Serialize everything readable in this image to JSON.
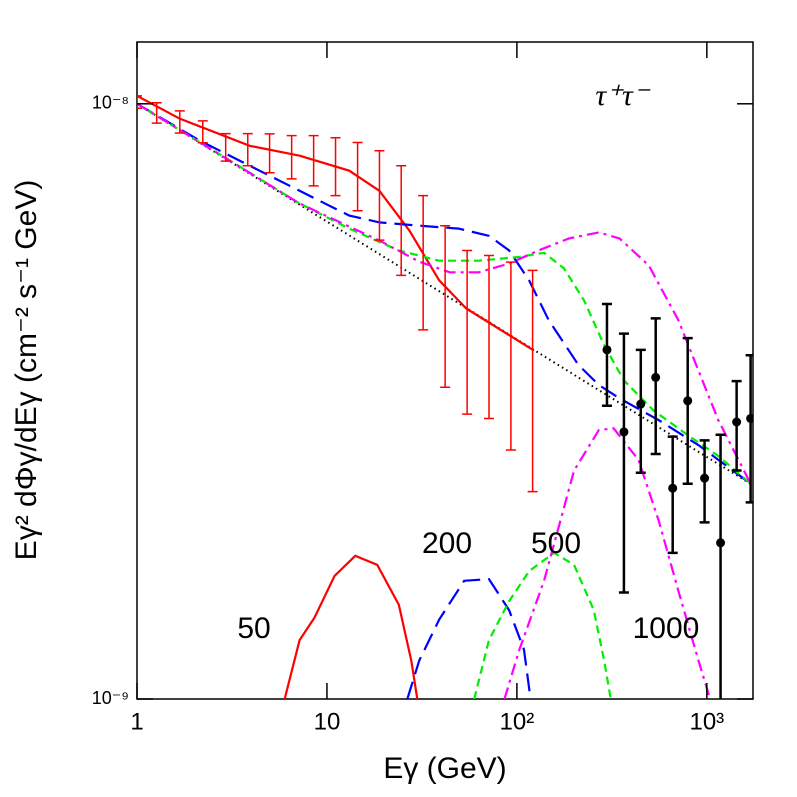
{
  "chart_data": {
    "type": "line",
    "x_label": "Eγ (GeV)",
    "y_label": "Eγ² dΦγ/dEγ (cm⁻² s⁻¹ GeV)",
    "log_x": true,
    "log_y": true,
    "xlim": [
      1,
      1750
    ],
    "ylim": [
      1e-09,
      1.27e-08
    ],
    "xticks": [
      1,
      10,
      {
        "value": 100,
        "label": "10²"
      },
      {
        "value": 1000,
        "label": "10³"
      }
    ],
    "yticks": [
      {
        "value": 1e-09,
        "label": "10⁻⁹"
      },
      {
        "value": 1e-08,
        "label": "10⁻⁸"
      }
    ],
    "annotations": [
      "τ⁺τ⁻",
      "50",
      "200",
      "500",
      "1000"
    ],
    "series": [
      {
        "style": "dotted",
        "color": "#000000",
        "x": [
          1,
          10,
          100,
          1000,
          1700
        ],
        "values": [
          1e-08,
          6.34e-09,
          4.02e-09,
          2.55e-09,
          2.3e-09
        ]
      },
      {
        "style": "solid",
        "color": "#ff0000",
        "x": [
          1,
          1.68,
          3.92,
          7.18,
          13.1,
          18.9,
          27.2,
          39,
          54.1,
          123
        ],
        "values": [
          1.031e-08,
          9.44e-09,
          8.5e-09,
          8.18e-09,
          7.72e-09,
          7.14e-09,
          6.12e-09,
          5.05e-09,
          4.53e-09,
          3.85e-09
        ]
      },
      {
        "style": "longdash",
        "color": "#0000ff",
        "x": [
          1,
          2.14,
          4.42,
          9.15,
          13.1,
          18.9,
          30.6,
          49.4,
          71.3,
          91,
          116,
          147,
          211,
          270,
          347,
          559,
          904,
          1700
        ],
        "values": [
          1e-08,
          8.67e-09,
          7.72e-09,
          6.87e-09,
          6.49e-09,
          6.32e-09,
          6.24e-09,
          6.17e-09,
          6e-09,
          5.67e-09,
          5.05e-09,
          4.33e-09,
          3.64e-09,
          3.37e-09,
          3.2e-09,
          2.94e-09,
          2.67e-09,
          2.3e-09
        ]
      },
      {
        "style": "shortdash",
        "color": "#00ee00",
        "x": [
          1,
          3.92,
          7.18,
          13.1,
          23.9,
          39,
          63.1,
          103,
          139,
          177,
          226,
          288,
          366,
          526,
          801,
          1150,
          1700
        ],
        "values": [
          1e-08,
          7.66e-09,
          6.8e-09,
          6.17e-09,
          5.67e-09,
          5.45e-09,
          5.45e-09,
          5.53e-09,
          5.62e-09,
          5.29e-09,
          4.67e-09,
          3.93e-09,
          3.43e-09,
          3.05e-09,
          2.77e-09,
          2.56e-09,
          2.3e-09
        ]
      },
      {
        "style": "dashdot",
        "color": "#ff00ff",
        "x": [
          1,
          7.18,
          18.9,
          30.6,
          44.3,
          63.1,
          91,
          130,
          188,
          270,
          347,
          495,
          708,
          904,
          1150,
          1700
        ],
        "values": [
          1e-08,
          6.8e-09,
          5.89e-09,
          5.43e-09,
          5.21e-09,
          5.21e-09,
          5.39e-09,
          5.67e-09,
          5.94e-09,
          6.08e-09,
          5.94e-09,
          5.35e-09,
          4.33e-09,
          3.56e-09,
          2.94e-09,
          2.3e-09
        ]
      },
      {
        "style": "solid",
        "color": "#ff0000",
        "x": [
          5.99,
          7.18,
          8.6,
          10.97,
          14.1,
          18.4,
          23.9,
          27.8,
          29.9
        ],
        "values": [
          1e-09,
          1.256e-09,
          1.37e-09,
          1.61e-09,
          1.74e-09,
          1.68e-09,
          1.44e-09,
          1.16e-09,
          1e-09
        ]
      },
      {
        "style": "longdash",
        "color": "#0000ff",
        "x": [
          26.5,
          30.6,
          39,
          52.8,
          71.3,
          91,
          109,
          118
        ],
        "values": [
          1e-09,
          1.16e-09,
          1.36e-09,
          1.58e-09,
          1.59e-09,
          1.41e-09,
          1.21e-09,
          1e-09
        ]
      },
      {
        "style": "shortdash",
        "color": "#00ee00",
        "x": [
          59.6,
          71.3,
          91,
          116,
          157,
          200,
          254,
          288,
          312
        ],
        "values": [
          1e-09,
          1.256e-09,
          1.46e-09,
          1.64e-09,
          1.76e-09,
          1.68e-09,
          1.41e-09,
          1.16e-09,
          1e-09
        ]
      },
      {
        "style": "dashdot",
        "color": "#ff00ff",
        "x": [
          86,
          103,
          139,
          200,
          270,
          323,
          437,
          559,
          708,
          904,
          1040
        ],
        "values": [
          1e-09,
          1.21e-09,
          1.58e-09,
          2.42e-09,
          2.83e-09,
          2.85e-09,
          2.52e-09,
          1.99e-09,
          1.52e-09,
          1.16e-09,
          1e-09
        ]
      },
      {
        "style": "errorbar",
        "markers": false,
        "color": "#ff0000",
        "x": [
          1,
          1.27,
          1.68,
          2.22,
          2.93,
          3.83,
          4.99,
          6.52,
          8.51,
          11.1,
          14.5,
          18.9,
          24.6,
          32.1,
          41.9,
          54.7,
          71.3,
          93,
          121
        ],
        "values": [
          1.007e-08,
          9.66e-09,
          9.33e-09,
          8.98e-09,
          8.46e-09,
          8.39e-09,
          8.28e-09,
          8.16e-09,
          8.06e-09,
          7.89e-09,
          7.61e-09,
          7.12e-09,
          6.51e-09,
          5.59e-09,
          4.79e-09,
          4.34e-09,
          4.26e-09,
          4.02e-09,
          3.74e-09
        ],
        "errors": [
          2.4e-10,
          3.8e-10,
          4e-10,
          3.8e-10,
          4.5e-10,
          5.2e-10,
          6.2e-10,
          6.8e-10,
          7.8e-10,
          8.8e-10,
          1e-09,
          1.22e-09,
          1.36e-09,
          1.42e-09,
          1.45e-09,
          1.33e-09,
          1.3e-09,
          1.4e-09,
          1.51e-09
        ]
      },
      {
        "style": "errorbar",
        "markers": true,
        "color": "#000000",
        "x": [
          298,
          366,
          449,
          538,
          661,
          793,
          973,
          1181,
          1435,
          1700
        ],
        "values": [
          3.86e-09,
          2.81e-09,
          3.13e-09,
          3.47e-09,
          2.26e-09,
          3.17e-09,
          2.35e-09,
          1.83e-09,
          2.92e-09,
          2.96e-09
        ],
        "errors": [
          7.5e-10,
          1.3e-09,
          7.3e-10,
          8.9e-10,
          5e-10,
          8.7e-10,
          3.7e-10,
          9.5e-10,
          5e-10,
          8.2e-10
        ]
      }
    ]
  }
}
